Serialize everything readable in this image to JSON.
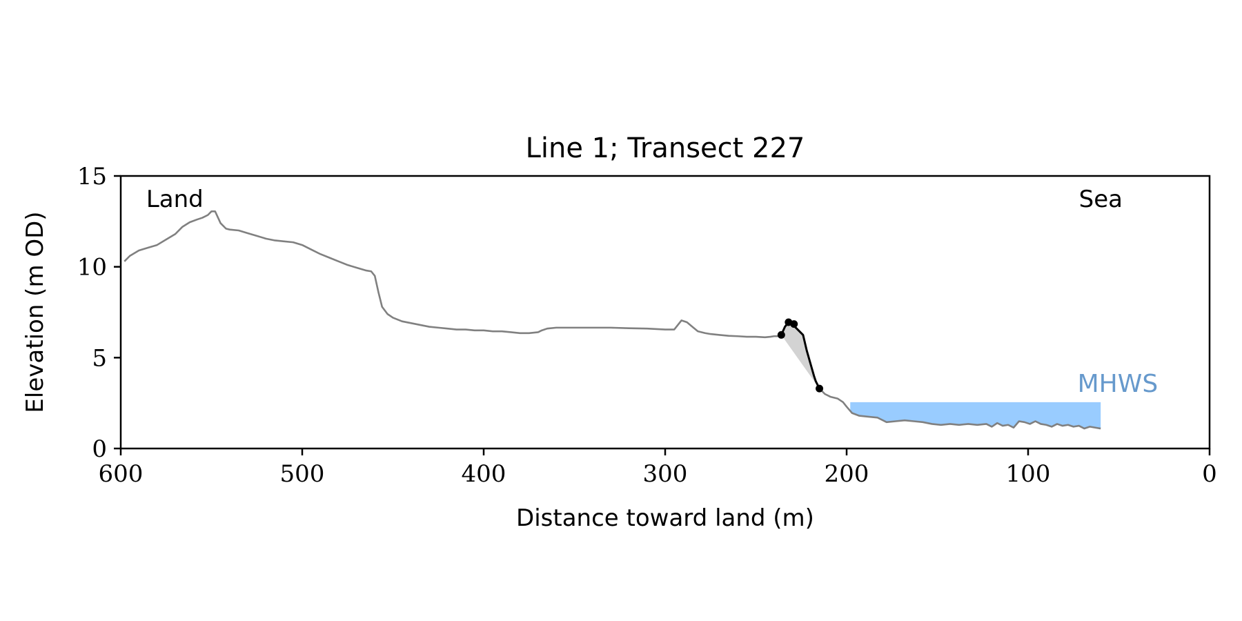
{
  "chart_data": {
    "type": "line",
    "title": "Line 1; Transect 227",
    "xlabel": "Distance toward land (m)",
    "ylabel": "Elevation (m OD)",
    "xlim": [
      600,
      0
    ],
    "ylim": [
      0,
      15
    ],
    "xticks": [
      600,
      500,
      400,
      300,
      200,
      100,
      0
    ],
    "yticks": [
      0,
      5,
      10,
      15
    ],
    "grid": false,
    "annotations": [
      {
        "text": "Land",
        "x": 586,
        "y": 13.3
      },
      {
        "text": "Sea",
        "x": 72,
        "y": 13.3
      }
    ],
    "mhws": {
      "label": "MHWS",
      "elevation": 2.55,
      "x_start": 198,
      "x_end": 60,
      "color": "#99ccff",
      "label_color": "#6699cc"
    },
    "profile": {
      "color": "#808080",
      "x": [
        598,
        595,
        590,
        585,
        580,
        575,
        570,
        566,
        562,
        558,
        555,
        552,
        550,
        548,
        545,
        542,
        540,
        535,
        530,
        525,
        520,
        515,
        510,
        505,
        500,
        495,
        490,
        485,
        480,
        475,
        470,
        465,
        462,
        460,
        458,
        456,
        453,
        450,
        445,
        440,
        435,
        430,
        425,
        420,
        415,
        410,
        405,
        400,
        395,
        390,
        385,
        380,
        375,
        370,
        368,
        365,
        360,
        350,
        340,
        330,
        320,
        310,
        300,
        295,
        293,
        291,
        288,
        285,
        282,
        278,
        275,
        270,
        265,
        260,
        255,
        250,
        245,
        242,
        240,
        237
      ],
      "y": [
        10.3,
        10.6,
        10.9,
        11.05,
        11.2,
        11.5,
        11.8,
        12.2,
        12.45,
        12.6,
        12.7,
        12.85,
        13.05,
        13.05,
        12.4,
        12.1,
        12.05,
        12.0,
        11.85,
        11.7,
        11.55,
        11.45,
        11.4,
        11.35,
        11.2,
        10.95,
        10.7,
        10.5,
        10.3,
        10.1,
        9.95,
        9.8,
        9.75,
        9.5,
        8.6,
        7.8,
        7.4,
        7.2,
        7.0,
        6.9,
        6.8,
        6.7,
        6.65,
        6.6,
        6.55,
        6.55,
        6.5,
        6.5,
        6.45,
        6.45,
        6.4,
        6.35,
        6.35,
        6.4,
        6.5,
        6.6,
        6.65,
        6.65,
        6.65,
        6.65,
        6.62,
        6.6,
        6.55,
        6.55,
        6.8,
        7.05,
        6.95,
        6.7,
        6.45,
        6.35,
        6.3,
        6.25,
        6.2,
        6.18,
        6.15,
        6.15,
        6.12,
        6.15,
        6.18,
        6.18
      ]
    },
    "profile_seaward": {
      "color": "#808080",
      "x": [
        215,
        212,
        209,
        205,
        202,
        200,
        197,
        193,
        188,
        183,
        178,
        173,
        168,
        163,
        158,
        153,
        148,
        143,
        138,
        133,
        128,
        123,
        120,
        117,
        114,
        111,
        108,
        105,
        102,
        99,
        96,
        93,
        90,
        87,
        84,
        81,
        78,
        75,
        72,
        69,
        66,
        63,
        60
      ],
      "y": [
        3.3,
        3.0,
        2.85,
        2.75,
        2.55,
        2.3,
        1.95,
        1.8,
        1.75,
        1.7,
        1.45,
        1.5,
        1.55,
        1.5,
        1.45,
        1.35,
        1.3,
        1.35,
        1.3,
        1.35,
        1.3,
        1.35,
        1.2,
        1.4,
        1.25,
        1.3,
        1.15,
        1.5,
        1.45,
        1.35,
        1.5,
        1.35,
        1.3,
        1.2,
        1.35,
        1.25,
        1.3,
        1.2,
        1.25,
        1.1,
        1.2,
        1.15,
        1.1
      ]
    },
    "cliff_line": {
      "color": "#000000",
      "x": [
        236,
        234,
        232,
        230,
        228,
        226,
        224,
        222,
        220,
        218,
        217,
        216,
        215
      ],
      "y": [
        6.25,
        6.7,
        6.95,
        6.85,
        6.65,
        6.45,
        6.25,
        5.4,
        4.7,
        4.0,
        3.7,
        3.5,
        3.3
      ]
    },
    "cliff_points": {
      "x": [
        236,
        232,
        229,
        215
      ],
      "y": [
        6.25,
        6.95,
        6.85,
        3.3
      ]
    },
    "cliff_fill": {
      "color": "#d3d3d3"
    }
  }
}
